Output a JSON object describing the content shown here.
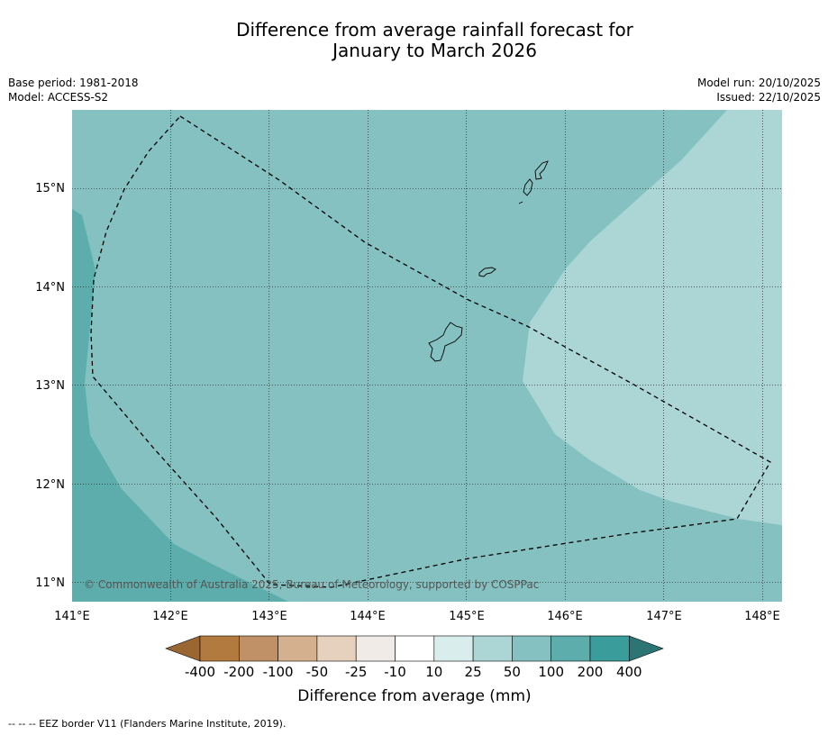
{
  "title": {
    "line1": "Difference from average rainfall forecast for",
    "line2": "January to March 2026"
  },
  "meta_left": {
    "base_period": "Base period: 1981-2018",
    "model": "Model: ACCESS-S2"
  },
  "meta_right": {
    "model_run": "Model run: 20/10/2025",
    "issued": "Issued: 22/10/2025"
  },
  "map": {
    "lon_ticks": [
      "141°E",
      "142°E",
      "143°E",
      "144°E",
      "145°E",
      "146°E",
      "147°E",
      "148°E"
    ],
    "lat_ticks": [
      "15°N",
      "14°N",
      "13°N",
      "12°N",
      "11°N"
    ],
    "copyright": "© Commonwealth of Australia 2025, Bureau of Meteorology, supported by COSPPac",
    "colors": {
      "band_25_50": "#acd6d5",
      "band_50_100": "#84c1c0",
      "band_100_200": "#5cadab"
    }
  },
  "colorbar": {
    "labels": [
      "-400",
      "-200",
      "-100",
      "-50",
      "-25",
      "-10",
      "10",
      "25",
      "50",
      "100",
      "200",
      "400"
    ],
    "colors": [
      "#9a6631",
      "#b37a3f",
      "#c09166",
      "#d4b08f",
      "#e6d1bf",
      "#f0ebe6",
      "#ffffff",
      "#d9eeec",
      "#acd6d5",
      "#84c1c0",
      "#5cadab",
      "#3a9c9b",
      "#2c7574"
    ],
    "title": "Difference from average (mm)"
  },
  "footer": "--  --  -- EEZ border V11 (Flanders Marine Institute, 2019)."
}
